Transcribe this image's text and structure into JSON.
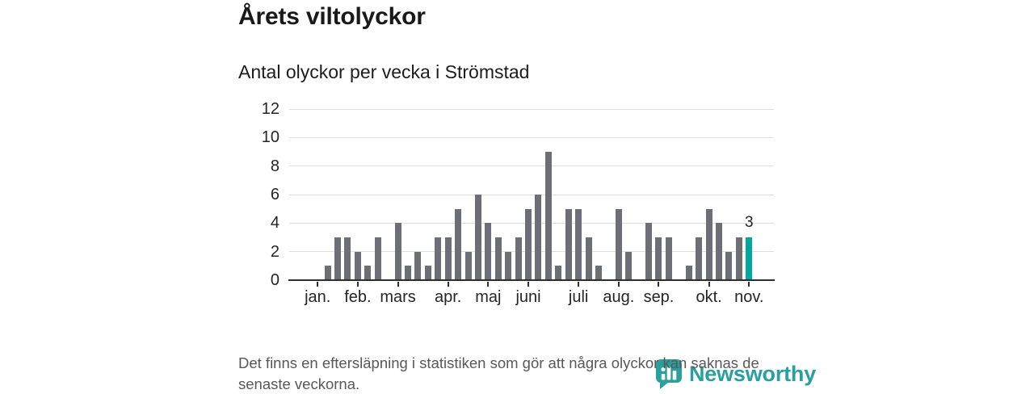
{
  "header": {
    "title": "Årets viltolyckor",
    "subtitle": "Antal olyckor per vecka i Strömstad"
  },
  "chart_data": {
    "type": "bar",
    "title": "Antal olyckor per vecka i Strömstad",
    "x_unit": "vecka (week of year)",
    "ylabel": "Antal olyckor",
    "ylim": [
      0,
      12
    ],
    "y_ticks": [
      0,
      2,
      4,
      6,
      8,
      10,
      12
    ],
    "grid": true,
    "values": [
      0,
      1,
      3,
      3,
      2,
      1,
      3,
      0,
      4,
      1,
      2,
      1,
      3,
      3,
      5,
      2,
      6,
      4,
      3,
      2,
      3,
      5,
      6,
      9,
      1,
      5,
      5,
      3,
      1,
      0,
      5,
      2,
      0,
      4,
      3,
      3,
      0,
      1,
      3,
      5,
      4,
      2,
      3,
      3
    ],
    "highlight_index": 43,
    "highlight_label": "3",
    "month_ticks": [
      {
        "label": "jan.",
        "week_index": 0
      },
      {
        "label": "feb.",
        "week_index": 4
      },
      {
        "label": "mars",
        "week_index": 8
      },
      {
        "label": "apr.",
        "week_index": 13
      },
      {
        "label": "maj",
        "week_index": 17
      },
      {
        "label": "juni",
        "week_index": 21
      },
      {
        "label": "juli",
        "week_index": 26
      },
      {
        "label": "aug.",
        "week_index": 30
      },
      {
        "label": "sep.",
        "week_index": 34
      },
      {
        "label": "okt.",
        "week_index": 39
      },
      {
        "label": "nov.",
        "week_index": 43
      }
    ],
    "colors": {
      "bar": "#6e6e76",
      "highlight": "#00a79e",
      "axis": "#2f2f2f",
      "grid": "#dedede"
    }
  },
  "footer": {
    "note": "Det finns en eftersläpning i statistiken som gör att några olyckor kan saknas de senaste veckorna."
  },
  "logo": {
    "text": "Newsworthy",
    "icon": "newsworthy-bubble-chart-icon",
    "color": "#2a9f9f"
  }
}
